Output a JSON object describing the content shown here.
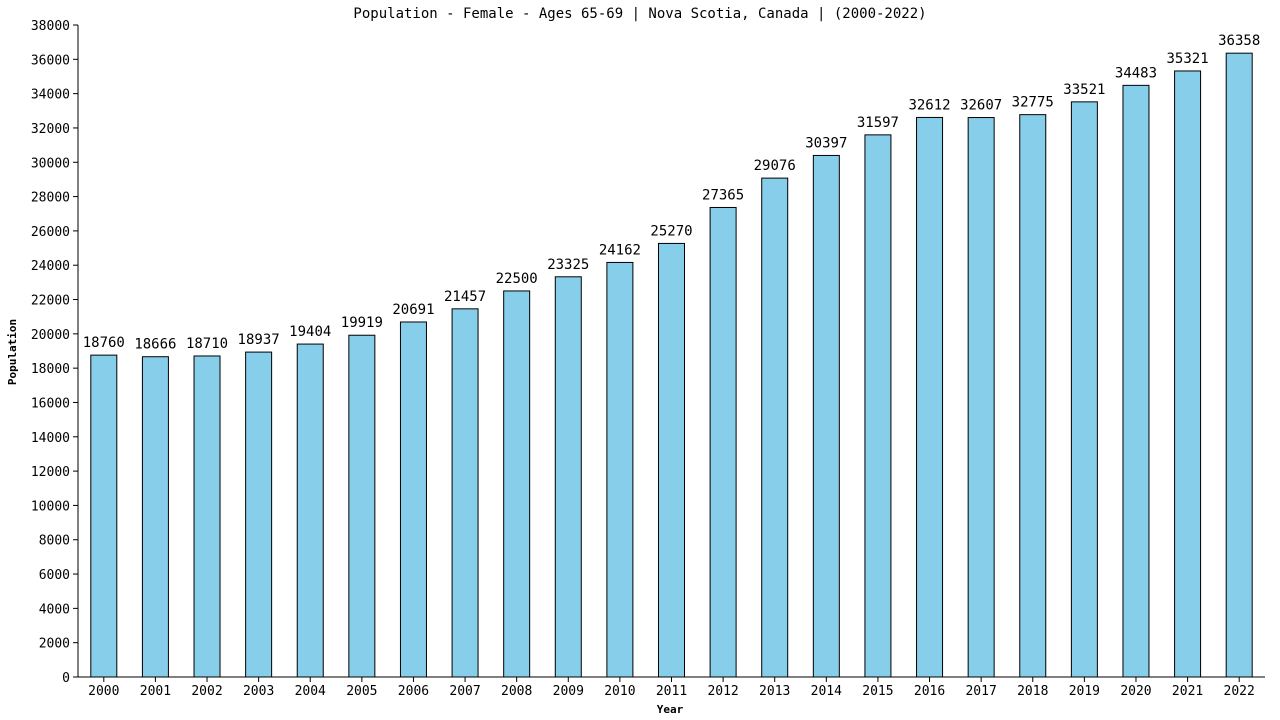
{
  "chart_data": {
    "type": "bar",
    "title": "Population - Female - Ages 65-69 | Nova Scotia, Canada |  (2000-2022)",
    "xlabel": "Year",
    "ylabel": "Population",
    "categories": [
      "2000",
      "2001",
      "2002",
      "2003",
      "2004",
      "2005",
      "2006",
      "2007",
      "2008",
      "2009",
      "2010",
      "2011",
      "2012",
      "2013",
      "2014",
      "2015",
      "2016",
      "2017",
      "2018",
      "2019",
      "2020",
      "2021",
      "2022"
    ],
    "values": [
      18760,
      18666,
      18710,
      18937,
      19404,
      19919,
      20691,
      21457,
      22500,
      23325,
      24162,
      25270,
      27365,
      29076,
      30397,
      31597,
      32612,
      32607,
      32775,
      33521,
      34483,
      35321,
      36358
    ],
    "data_labels": [
      "18760",
      "18666",
      "18710",
      "18937",
      "19404",
      "19919",
      "20691",
      "21457",
      "22500",
      "23325",
      "24162",
      "25270",
      "27365",
      "29076",
      "30397",
      "31597",
      "32612",
      "32607",
      "32775",
      "33521",
      "34483",
      "35321",
      "36358"
    ],
    "ylim": [
      0,
      38000
    ],
    "yticks": [
      0,
      2000,
      4000,
      6000,
      8000,
      10000,
      12000,
      14000,
      16000,
      18000,
      20000,
      22000,
      24000,
      26000,
      28000,
      30000,
      32000,
      34000,
      36000,
      38000
    ],
    "grid": false,
    "legend": "none",
    "bar_color": "#87ceeb",
    "edge_color": "#000000"
  }
}
